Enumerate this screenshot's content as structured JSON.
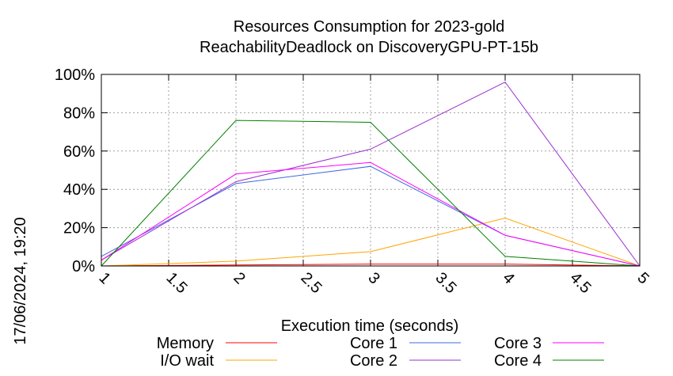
{
  "chart_data": {
    "type": "line",
    "title": "Resources Consumption for 2023-gold",
    "subtitle": "ReachabilityDeadlock on DiscoveryGPU-PT-15b",
    "xlabel": "Execution time (seconds)",
    "ylabel": "",
    "timestamp": "17/06/2024, 19:20",
    "xlim": [
      1,
      5
    ],
    "ylim": [
      0,
      100
    ],
    "x_ticks": [
      "1",
      "1.5",
      "2",
      "2.5",
      "3",
      "3.5",
      "4",
      "4.5",
      "5"
    ],
    "y_ticks": [
      "0%",
      "20%",
      "40%",
      "60%",
      "80%",
      "100%"
    ],
    "grid": true,
    "legend_position": "bottom",
    "series": [
      {
        "name": "Memory",
        "color": "#ff0000",
        "x": [
          1,
          2,
          3,
          4,
          5
        ],
        "y": [
          0,
          0.5,
          1,
          1,
          0
        ]
      },
      {
        "name": "I/O wait",
        "color": "#ffa500",
        "x": [
          1,
          2,
          3,
          4,
          5
        ],
        "y": [
          0,
          2.5,
          7.5,
          25,
          0
        ]
      },
      {
        "name": "Core 1",
        "color": "#4169e1",
        "x": [
          1,
          2,
          3,
          4,
          5
        ],
        "y": [
          5,
          43,
          52,
          16,
          0
        ]
      },
      {
        "name": "Core 2",
        "color": "#9932cc",
        "x": [
          1,
          2,
          3,
          4,
          5
        ],
        "y": [
          3,
          44,
          61,
          96,
          0
        ]
      },
      {
        "name": "Core 3",
        "color": "#ff00ff",
        "x": [
          1,
          2,
          3,
          4,
          5
        ],
        "y": [
          3,
          48,
          54,
          16,
          0
        ]
      },
      {
        "name": "Core 4",
        "color": "#008000",
        "x": [
          1,
          2,
          3,
          4,
          5
        ],
        "y": [
          0,
          76,
          75,
          5,
          0
        ]
      }
    ]
  }
}
